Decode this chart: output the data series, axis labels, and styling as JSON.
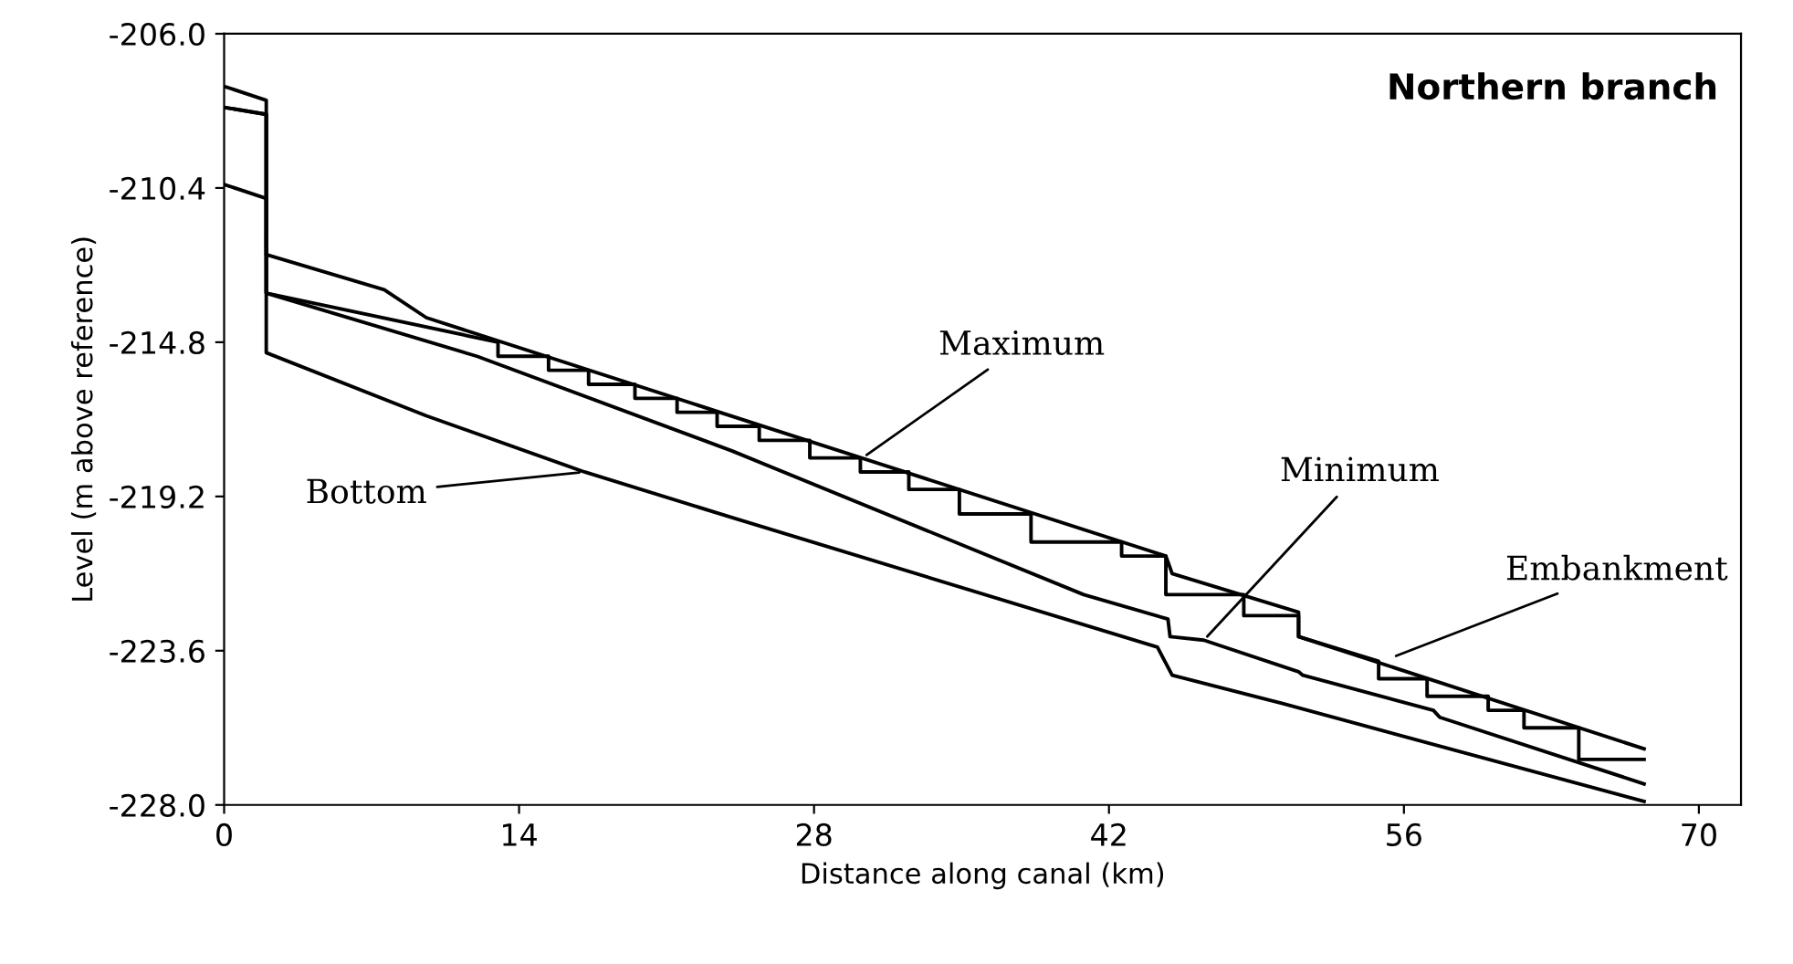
{
  "chart_data": {
    "type": "line",
    "title": "Northern branch",
    "xlabel": "Distance along canal (km)",
    "ylabel": "Level (m above reference)",
    "xlim": [
      0,
      72
    ],
    "xticks": [
      0,
      14,
      28,
      42,
      56,
      70
    ],
    "ylim": [
      -228.0,
      -206.0
    ],
    "yticks": [
      {
        "value": -206.0,
        "label": "-206.0"
      },
      {
        "value": -210.4,
        "label": "-210.4"
      },
      {
        "value": -214.8,
        "label": "-214.8"
      },
      {
        "value": -219.2,
        "label": "-219.2"
      },
      {
        "value": -223.6,
        "label": "-223.6"
      },
      {
        "value": -228.0,
        "label": "-228.0"
      }
    ],
    "grid": false,
    "legend": false,
    "marker": "none",
    "line_style": "solid",
    "series": [
      {
        "color": "#000000",
        "x": [
          0,
          2.0,
          2.0,
          7.6,
          9.6,
          44.7,
          45.0,
          51.0,
          51.0,
          67.4
        ],
        "values": [
          -207.5,
          -207.9,
          -212.3,
          -213.3,
          -214.1,
          -220.9,
          -221.4,
          -222.5,
          -223.2,
          -226.4
        ]
      },
      {
        "color": "#000000",
        "x": [
          0,
          2.0,
          2.0,
          13.0,
          13.0,
          15.4,
          15.4,
          17.3,
          17.3,
          19.5,
          19.5,
          21.5,
          21.5,
          23.4,
          23.4,
          25.4,
          25.4,
          27.8,
          27.8,
          30.2,
          30.2,
          32.5,
          32.5,
          34.9,
          34.9,
          38.3,
          38.3,
          42.6,
          42.6,
          44.7,
          44.7,
          48.4,
          48.4,
          51.0,
          51.0,
          54.8,
          54.8,
          57.1,
          57.1,
          60.0,
          60.0,
          61.7,
          61.7,
          64.3,
          64.3,
          67.4
        ],
        "values": [
          -208.1,
          -208.3,
          -213.4,
          -214.8,
          -215.2,
          -215.2,
          -215.6,
          -215.6,
          -216.0,
          -216.0,
          -216.4,
          -216.4,
          -216.8,
          -216.8,
          -217.2,
          -217.2,
          -217.6,
          -217.6,
          -218.1,
          -218.1,
          -218.5,
          -218.5,
          -219.0,
          -219.0,
          -219.7,
          -219.7,
          -220.5,
          -220.5,
          -220.9,
          -220.9,
          -222.0,
          -222.0,
          -222.6,
          -222.6,
          -223.2,
          -223.9,
          -224.4,
          -224.4,
          -224.9,
          -224.9,
          -225.3,
          -225.3,
          -225.8,
          -225.8,
          -226.7,
          -226.7
        ]
      },
      {
        "color": "#000000",
        "x": [
          0,
          2.0,
          2.0,
          12.0,
          24.1,
          40.8,
          44.8,
          44.9,
          46.5,
          51.0,
          51.2,
          57.4,
          57.7,
          67.4
        ],
        "values": [
          -208.1,
          -208.3,
          -213.4,
          -215.2,
          -217.9,
          -222.0,
          -222.7,
          -223.2,
          -223.3,
          -224.2,
          -224.3,
          -225.3,
          -225.5,
          -227.4
        ]
      },
      {
        "color": "#000000",
        "x": [
          0,
          2.0,
          2.0,
          9.6,
          17.1,
          24.1,
          44.3,
          45.0,
          50.2,
          67.4
        ],
        "values": [
          -210.3,
          -210.7,
          -215.1,
          -216.9,
          -218.5,
          -219.8,
          -223.5,
          -224.3,
          -225.1,
          -227.9
        ]
      }
    ],
    "annotations": [
      {
        "text": "Maximum",
        "x": 30.3,
        "y": -218.1
      },
      {
        "text": "Minimum",
        "x": 46.5,
        "y": -223.3
      },
      {
        "text": "Embankment",
        "x": 55.4,
        "y": -223.8
      },
      {
        "text": "Bottom",
        "x": 17.1,
        "y": -218.5
      }
    ]
  }
}
